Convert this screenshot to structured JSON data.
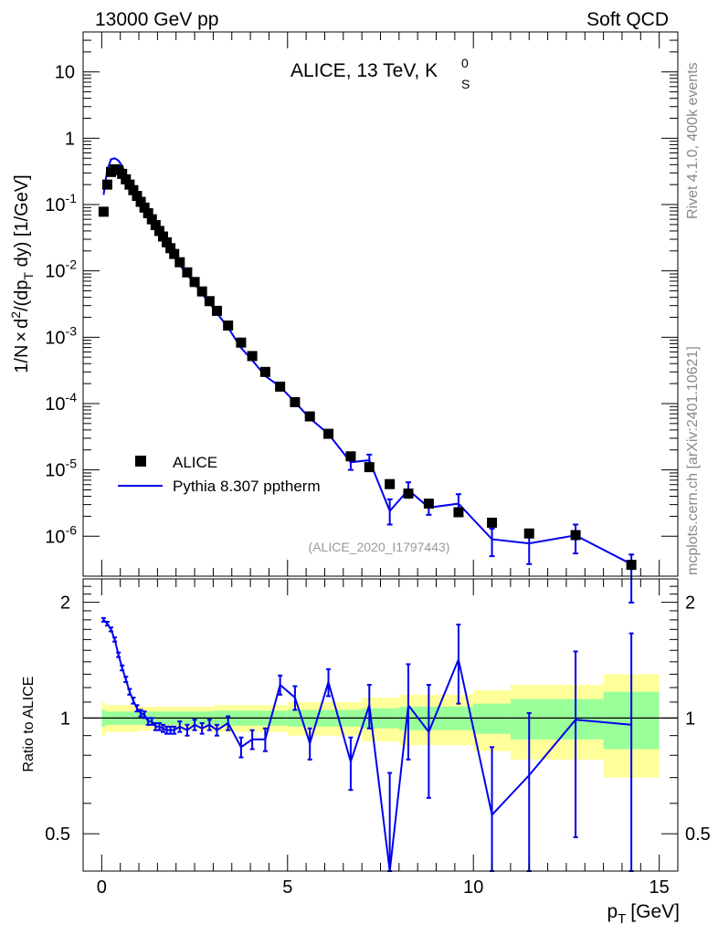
{
  "header": {
    "left": "13000 GeV pp",
    "right": "Soft QCD"
  },
  "side": {
    "rivet": "Rivet 4.1.0,  400k events",
    "mcplots": "mcplots.cern.ch [arXiv:2401.10621]"
  },
  "colors": {
    "data": "#000000",
    "mc": "#0000ee",
    "band_inner": "#99ff99",
    "band_outer": "#ffff99"
  },
  "chart_data": {
    "type": "scatter",
    "title": "ALICE, 13 TeV, K",
    "title_sup": "0",
    "title_sub": "S",
    "analysis_tag": "(ALICE_2020_I1797443)",
    "xlabel": "p",
    "xlabel_sub": "T",
    "xlabel_unit": "[GeV]",
    "ylabel_parts": [
      "1/N",
      "×",
      "d",
      "2",
      "/(dp",
      "T",
      " dy) [1/GeV]"
    ],
    "ratio_ylabel": "Ratio to ALICE",
    "xlim": [
      -0.5,
      15.5
    ],
    "ylim_log": [
      2.5e-07,
      40
    ],
    "ratio_ylim": [
      0.4,
      2.3
    ],
    "x_ticks": [
      0,
      5,
      10,
      15
    ],
    "x_tick_labels": [
      "0",
      "5",
      "10",
      "15"
    ],
    "y_major_ticks": [
      1e-06,
      1e-05,
      0.0001,
      0.001,
      0.01,
      0.1,
      1,
      10
    ],
    "y_tick_labels": [
      {
        "base": "10",
        "exp": "-6"
      },
      {
        "base": "10",
        "exp": "-5"
      },
      {
        "base": "10",
        "exp": "-4"
      },
      {
        "base": "10",
        "exp": "-3"
      },
      {
        "base": "10",
        "exp": "-2"
      },
      {
        "base": "10",
        "exp": "-1"
      },
      {
        "base": "1",
        "exp": ""
      },
      {
        "base": "10",
        "exp": ""
      }
    ],
    "ratio_ticks": [
      0.5,
      1,
      2
    ],
    "ratio_tick_labels": [
      "0.5",
      "1",
      "2"
    ],
    "legend": [
      {
        "label": "ALICE",
        "kind": "marker"
      },
      {
        "label": "Pythia 8.307 pptherm",
        "kind": "line"
      }
    ],
    "data": {
      "name": "ALICE",
      "x": [
        0.05,
        0.15,
        0.25,
        0.35,
        0.45,
        0.55,
        0.65,
        0.75,
        0.85,
        0.95,
        1.05,
        1.15,
        1.25,
        1.35,
        1.45,
        1.55,
        1.65,
        1.75,
        1.85,
        1.95,
        2.1,
        2.3,
        2.5,
        2.7,
        2.9,
        3.1,
        3.4,
        3.75,
        4.05,
        4.4,
        4.8,
        5.2,
        5.6,
        6.1,
        6.7,
        7.2,
        7.75,
        8.25,
        8.8,
        9.6,
        10.5,
        11.5,
        12.75,
        14.25
      ],
      "y": [
        0.078,
        0.2,
        0.31,
        0.34,
        0.33,
        0.29,
        0.24,
        0.2,
        0.165,
        0.135,
        0.11,
        0.09,
        0.074,
        0.06,
        0.049,
        0.04,
        0.033,
        0.027,
        0.022,
        0.018,
        0.0135,
        0.0095,
        0.0068,
        0.0049,
        0.0035,
        0.0025,
        0.0015,
        0.00083,
        0.00052,
        0.0003,
        0.00018,
        0.000105,
        6.4e-05,
        3.5e-05,
        1.6e-05,
        1.1e-05,
        6.1e-06,
        4.4e-06,
        3.1e-06,
        2.3e-06,
        1.6e-06,
        1.1e-06,
        1.04e-06,
        3.7e-07
      ]
    },
    "mc": {
      "name": "Pythia 8.307 pptherm",
      "x": [
        0.05,
        0.15,
        0.25,
        0.35,
        0.45,
        0.55,
        0.65,
        0.75,
        0.85,
        0.95,
        1.05,
        1.15,
        1.25,
        1.35,
        1.45,
        1.55,
        1.65,
        1.75,
        1.85,
        1.95,
        2.1,
        2.3,
        2.5,
        2.7,
        2.9,
        3.1,
        3.4,
        3.75,
        4.05,
        4.4,
        4.8,
        5.2,
        5.6,
        6.1,
        6.7,
        7.2,
        7.75,
        8.25,
        8.8,
        9.6,
        10.5,
        11.5,
        12.75,
        14.25
      ],
      "y": [
        0.14,
        0.33,
        0.48,
        0.5,
        0.46,
        0.38,
        0.29,
        0.22,
        0.175,
        0.14,
        0.11,
        0.088,
        0.072,
        0.057,
        0.046,
        0.038,
        0.031,
        0.025,
        0.02,
        0.016,
        0.0123,
        0.0088,
        0.0064,
        0.0045,
        0.0033,
        0.0023,
        0.0014,
        0.00069,
        0.00045,
        0.00026,
        0.00018,
        0.000105,
        6e-05,
        3.5e-05,
        1.3e-05,
        1.4e-05,
        2.4e-06,
        5e-06,
        2.7e-06,
        3.1e-06,
        9e-07,
        7.8e-07,
        1.03e-06,
        3.8e-07
      ],
      "err_lo": [
        0,
        0,
        0,
        0,
        0,
        0,
        0,
        0,
        0,
        0,
        0,
        0,
        0,
        0,
        0,
        0,
        0,
        0,
        0,
        0,
        0,
        0,
        0,
        0,
        0,
        0,
        0,
        0,
        0,
        0,
        0,
        0,
        0,
        0,
        0,
        0,
        0,
        0,
        0,
        0,
        0,
        0,
        0,
        0
      ],
      "err_hi": [
        0,
        0,
        0,
        0,
        0,
        0,
        0,
        0,
        0,
        0,
        0,
        0,
        0,
        0,
        0,
        0,
        0,
        0,
        0,
        0,
        0,
        0,
        0,
        0,
        0,
        0,
        0,
        0,
        0,
        0,
        0,
        0,
        0,
        0,
        0,
        0,
        0,
        0,
        0,
        0,
        0,
        0,
        0,
        0
      ],
      "ratio": [
        1.8,
        1.76,
        1.7,
        1.6,
        1.46,
        1.35,
        1.26,
        1.17,
        1.11,
        1.06,
        1.03,
        1.02,
        0.98,
        0.98,
        0.95,
        0.95,
        0.94,
        0.93,
        0.93,
        0.93,
        0.95,
        0.93,
        0.96,
        0.94,
        0.96,
        0.93,
        0.97,
        0.84,
        0.88,
        0.88,
        1.22,
        1.13,
        0.86,
        1.24,
        0.77,
        1.08,
        0.37,
        1.08,
        0.92,
        1.42,
        0.56,
        0.71,
        0.99,
        0.96
      ],
      "ratio_err": [
        0.02,
        0.02,
        0.02,
        0.02,
        0.02,
        0.02,
        0.02,
        0.02,
        0.02,
        0.02,
        0.02,
        0.02,
        0.02,
        0.02,
        0.02,
        0.02,
        0.02,
        0.02,
        0.02,
        0.02,
        0.03,
        0.03,
        0.03,
        0.03,
        0.03,
        0.03,
        0.04,
        0.05,
        0.05,
        0.06,
        0.07,
        0.08,
        0.08,
        0.1,
        0.12,
        0.14,
        0.35,
        0.3,
        0.3,
        0.33,
        0.28,
        0.32,
        0.5,
        0.7
      ]
    },
    "mc_errbars_main": [
      {
        "x": 6.7,
        "lo": 1e-05,
        "hi": 1.8e-05
      },
      {
        "x": 7.2,
        "lo": 1e-05,
        "hi": 1.7e-05
      },
      {
        "x": 7.75,
        "lo": 1.5e-06,
        "hi": 3.6e-06
      },
      {
        "x": 8.25,
        "lo": 3.8e-06,
        "hi": 6.5e-06
      },
      {
        "x": 8.8,
        "lo": 2.1e-06,
        "hi": 3.4e-06
      },
      {
        "x": 9.6,
        "lo": 2.3e-06,
        "hi": 4.3e-06
      },
      {
        "x": 10.5,
        "lo": 5e-07,
        "hi": 1.3e-06
      },
      {
        "x": 11.5,
        "lo": 3.8e-07,
        "hi": 1.2e-06
      },
      {
        "x": 12.75,
        "lo": 5.5e-07,
        "hi": 1.5e-06
      },
      {
        "x": 14.25,
        "lo": 1e-07,
        "hi": 5.3e-07
      }
    ],
    "ratio_bands": [
      {
        "x0": 0.0,
        "x1": 0.1,
        "inner": 0.05,
        "outer": 0.1
      },
      {
        "x0": 0.1,
        "x1": 1.0,
        "inner": 0.04,
        "outer": 0.08
      },
      {
        "x0": 1.0,
        "x1": 3.0,
        "inner": 0.04,
        "outer": 0.07
      },
      {
        "x0": 3.0,
        "x1": 5.0,
        "inner": 0.045,
        "outer": 0.08
      },
      {
        "x0": 5.0,
        "x1": 7.0,
        "inner": 0.05,
        "outer": 0.1
      },
      {
        "x0": 7.0,
        "x1": 8.0,
        "inner": 0.06,
        "outer": 0.13
      },
      {
        "x0": 8.0,
        "x1": 10.0,
        "inner": 0.07,
        "outer": 0.15
      },
      {
        "x0": 10.0,
        "x1": 11.0,
        "inner": 0.09,
        "outer": 0.18
      },
      {
        "x0": 11.0,
        "x1": 13.5,
        "inner": 0.12,
        "outer": 0.22
      },
      {
        "x0": 13.5,
        "x1": 15.0,
        "inner": 0.17,
        "outer": 0.3
      }
    ]
  }
}
